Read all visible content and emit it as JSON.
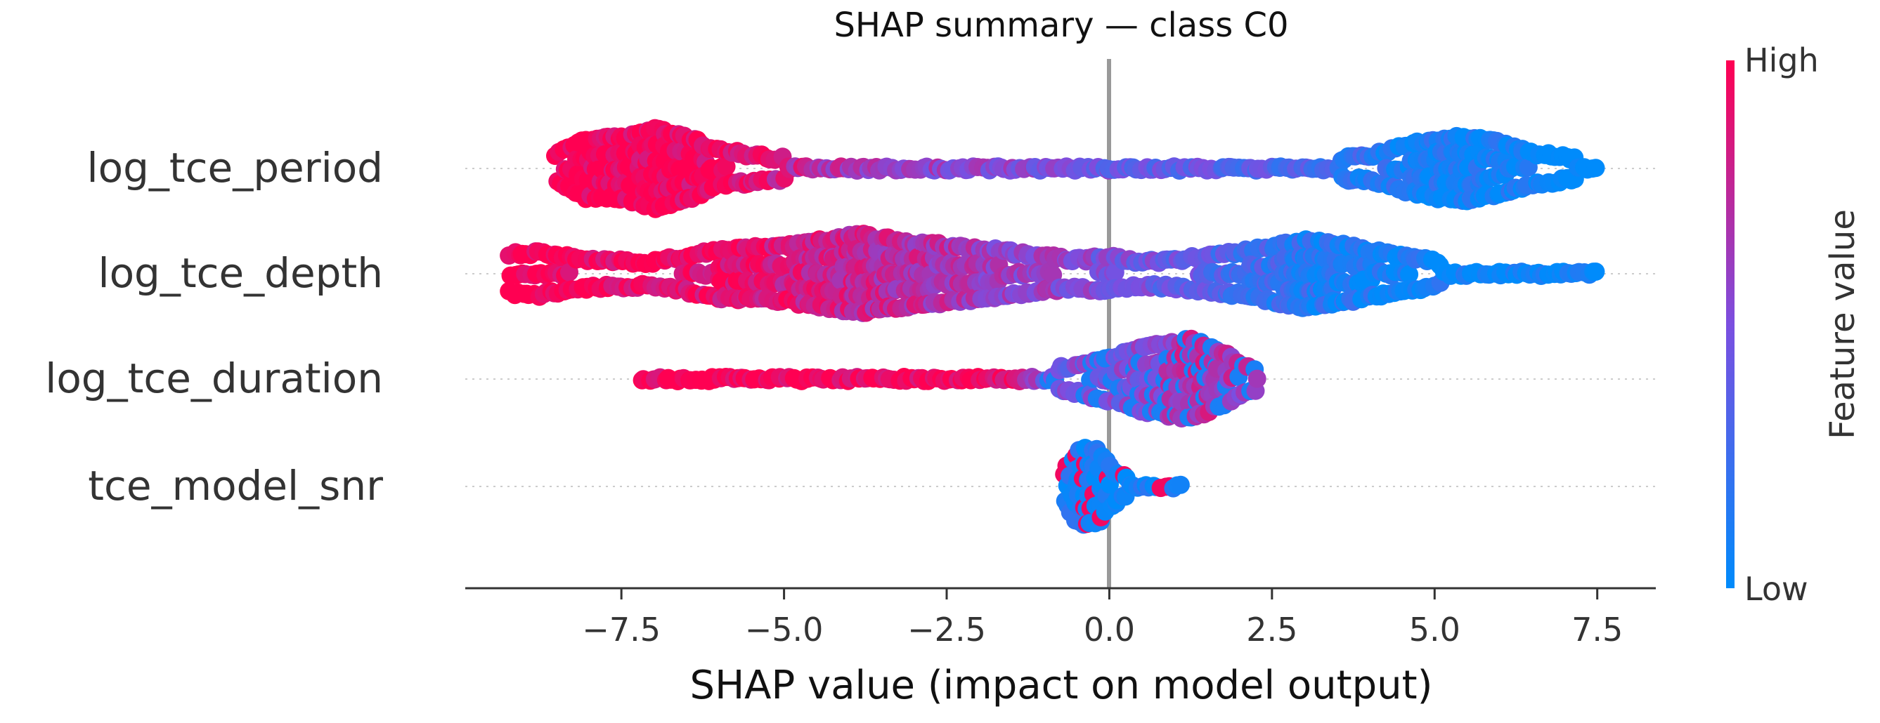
{
  "chart_data": {
    "type": "scatter",
    "subtype": "shap-beeswarm",
    "title": "SHAP summary — class C0",
    "xlabel": "SHAP value (impact on model output)",
    "ylabel": "",
    "xlim": [
      -9.9,
      8.4
    ],
    "xticks": [
      -7.5,
      -5.0,
      -2.5,
      0.0,
      2.5,
      5.0,
      7.5
    ],
    "xtick_labels": [
      "−7.5",
      "−5.0",
      "−2.5",
      "0.0",
      "2.5",
      "5.0",
      "7.5"
    ],
    "features": [
      "log_tce_period",
      "log_tce_depth",
      "log_tce_duration",
      "tce_model_snr"
    ],
    "colorbar": {
      "label": "Feature value",
      "high_label": "High",
      "low_label": "Low",
      "high_color": "#ff0052",
      "low_color": "#008bfb"
    },
    "series": [
      {
        "name": "log_tce_period",
        "min": -8.5,
        "max": 7.5,
        "density": [
          [
            -8.5,
            0.35
          ],
          [
            -8.0,
            0.75
          ],
          [
            -7.5,
            0.8
          ],
          [
            -7.0,
            1.0
          ],
          [
            -6.5,
            0.8
          ],
          [
            -6.0,
            0.45
          ],
          [
            -5.0,
            0.25
          ],
          [
            -4.0,
            0.2
          ],
          [
            -3.0,
            0.15
          ],
          [
            -2.0,
            0.15
          ],
          [
            -1.0,
            0.15
          ],
          [
            0.0,
            0.15
          ],
          [
            1.0,
            0.15
          ],
          [
            2.0,
            0.18
          ],
          [
            3.0,
            0.2
          ],
          [
            4.0,
            0.3
          ],
          [
            4.5,
            0.55
          ],
          [
            5.0,
            0.75
          ],
          [
            5.5,
            0.8
          ],
          [
            6.0,
            0.65
          ],
          [
            6.5,
            0.4
          ],
          [
            7.0,
            0.3
          ],
          [
            7.5,
            0.15
          ]
        ],
        "color_trend": [
          [
            -8.5,
            1.0
          ],
          [
            -6.0,
            0.95
          ],
          [
            -4.0,
            0.65
          ],
          [
            0.0,
            0.45
          ],
          [
            3.0,
            0.3
          ],
          [
            4.5,
            0.1
          ],
          [
            7.5,
            0.0
          ]
        ]
      },
      {
        "name": "log_tce_depth",
        "min": -9.2,
        "max": 7.5,
        "density": [
          [
            -9.2,
            0.5
          ],
          [
            -8.8,
            0.55
          ],
          [
            -8.0,
            0.35
          ],
          [
            -7.0,
            0.3
          ],
          [
            -6.5,
            0.45
          ],
          [
            -6.0,
            0.6
          ],
          [
            -5.0,
            0.7
          ],
          [
            -4.2,
            0.9
          ],
          [
            -3.8,
            1.0
          ],
          [
            -3.0,
            0.8
          ],
          [
            -2.0,
            0.65
          ],
          [
            -1.0,
            0.45
          ],
          [
            -0.5,
            0.35
          ],
          [
            0.0,
            0.45
          ],
          [
            0.5,
            0.3
          ],
          [
            1.0,
            0.35
          ],
          [
            2.0,
            0.55
          ],
          [
            3.0,
            0.85
          ],
          [
            3.5,
            0.75
          ],
          [
            4.0,
            0.6
          ],
          [
            4.5,
            0.45
          ],
          [
            5.0,
            0.3
          ],
          [
            5.5,
            0.12
          ],
          [
            6.3,
            0.08
          ],
          [
            7.0,
            0.08
          ],
          [
            7.5,
            0.08
          ]
        ],
        "color_trend": [
          [
            -9.2,
            1.0
          ],
          [
            -6.0,
            0.92
          ],
          [
            -3.0,
            0.72
          ],
          [
            0.0,
            0.5
          ],
          [
            2.0,
            0.3
          ],
          [
            3.5,
            0.1
          ],
          [
            7.5,
            0.0
          ]
        ]
      },
      {
        "name": "log_tce_duration",
        "min": -7.2,
        "max": 2.3,
        "density": [
          [
            -7.2,
            0.12
          ],
          [
            -6.8,
            0.08
          ],
          [
            -6.5,
            0.1
          ],
          [
            -5.0,
            0.12
          ],
          [
            -3.0,
            0.12
          ],
          [
            -1.5,
            0.13
          ],
          [
            -1.0,
            0.2
          ],
          [
            -0.5,
            0.35
          ],
          [
            0.0,
            0.55
          ],
          [
            0.5,
            0.8
          ],
          [
            1.0,
            0.95
          ],
          [
            1.3,
            1.0
          ],
          [
            1.7,
            0.7
          ],
          [
            2.0,
            0.4
          ],
          [
            2.3,
            0.2
          ]
        ],
        "color_trend": [
          [
            -7.2,
            1.0
          ],
          [
            -1.5,
            0.95
          ],
          [
            -1.0,
            0.5
          ],
          [
            0.0,
            0.45
          ],
          [
            0.7,
            0.55
          ],
          [
            1.3,
            0.75
          ],
          [
            2.3,
            0.6
          ]
        ]
      },
      {
        "name": "tce_model_snr",
        "min": -0.7,
        "max": 1.1,
        "density": [
          [
            -0.7,
            0.35
          ],
          [
            -0.5,
            0.9
          ],
          [
            -0.3,
            1.0
          ],
          [
            -0.1,
            0.8
          ],
          [
            0.1,
            0.35
          ],
          [
            0.4,
            0.2
          ],
          [
            0.8,
            0.12
          ],
          [
            1.1,
            0.08
          ]
        ],
        "color_trend": [
          [
            -0.7,
            0.05
          ],
          [
            0.0,
            0.05
          ],
          [
            1.1,
            0.0
          ]
        ]
      }
    ]
  }
}
